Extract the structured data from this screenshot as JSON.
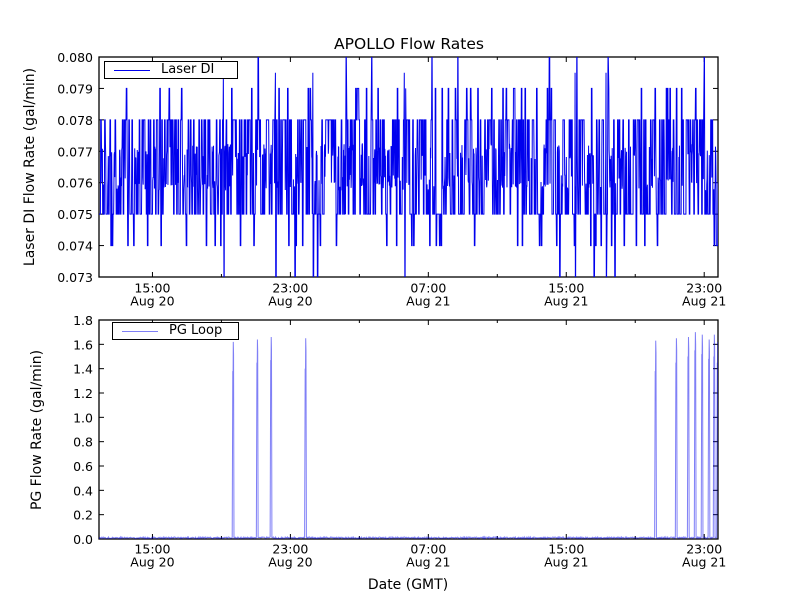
{
  "figure": {
    "title": "APOLLO Flow Rates",
    "background_color": "#ffffff",
    "axes_color": "#000000",
    "line_color": "#0000ee",
    "pg_line_opacity": 0.5
  },
  "chart_data": [
    {
      "type": "line",
      "title": "APOLLO Flow Rates",
      "ylabel": "Laser DI Flow Rate (gal/min)",
      "legend": [
        "Laser DI"
      ],
      "legend_position": "upper left",
      "line_color": "#0000ee",
      "ylim": [
        0.073,
        0.08
      ],
      "ytick_labels": [
        "0.073",
        "0.074",
        "0.075",
        "0.076",
        "0.077",
        "0.078",
        "0.079",
        "0.080"
      ],
      "ytick_values": [
        0.073,
        0.074,
        0.075,
        0.076,
        0.077,
        0.078,
        0.079,
        0.08
      ],
      "xlim_hours_since_aug20_0000": [
        11.9,
        47.8
      ],
      "xticks": [
        {
          "hour": 15,
          "time": "15:00",
          "date": "Aug 20"
        },
        {
          "hour": 23,
          "time": "23:00",
          "date": "Aug 20"
        },
        {
          "hour": 31,
          "time": "07:00",
          "date": "Aug 21"
        },
        {
          "hour": 39,
          "time": "15:00",
          "date": "Aug 21"
        },
        {
          "hour": 47,
          "time": "23:00",
          "date": "Aug 21"
        }
      ],
      "x_minor_tick_hours": [
        19,
        27,
        35,
        43
      ],
      "signal": {
        "kind": "quantized-noise",
        "description": "Flow meter reading oscillating rapidly between discrete 0.001 gal/min levels; solid band 0.076-0.077, frequent excursions to 0.075/0.078, occasional 0.074/0.079, rare clipped extremes 0.073/0.080",
        "sample_count": 2200,
        "levels": [
          0.073,
          0.074,
          0.075,
          0.076,
          0.077,
          0.078,
          0.079,
          0.08
        ],
        "weights": [
          0.003,
          0.034,
          0.185,
          0.278,
          0.278,
          0.185,
          0.034,
          0.003
        ],
        "clip_high_hours": [
          26.2,
          27.7,
          31.2,
          32.7,
          38.0,
          39.6,
          41.4,
          47.0
        ],
        "clip_low_hours": [
          19.1,
          22.1,
          24.3,
          29.6,
          39.5,
          41.3
        ],
        "seed": 1337
      }
    },
    {
      "type": "line",
      "ylabel": "PG Flow Rate (gal/min)",
      "xlabel": "Date (GMT)",
      "legend": [
        "PG Loop"
      ],
      "legend_position": "upper left",
      "line_color": "#0000ee",
      "line_opacity": 0.5,
      "ylim": [
        0.0,
        1.8
      ],
      "ytick_labels": [
        "0.0",
        "0.2",
        "0.4",
        "0.6",
        "0.8",
        "1.0",
        "1.2",
        "1.4",
        "1.6",
        "1.8"
      ],
      "ytick_values": [
        0.0,
        0.2,
        0.4,
        0.6,
        0.8,
        1.0,
        1.2,
        1.4,
        1.6,
        1.8
      ],
      "xlim_hours_since_aug20_0000": [
        11.9,
        47.8
      ],
      "xticks": [
        {
          "hour": 15,
          "time": "15:00",
          "date": "Aug 20"
        },
        {
          "hour": 23,
          "time": "23:00",
          "date": "Aug 20"
        },
        {
          "hour": 31,
          "time": "07:00",
          "date": "Aug 21"
        },
        {
          "hour": 39,
          "time": "15:00",
          "date": "Aug 21"
        },
        {
          "hour": 47,
          "time": "23:00",
          "date": "Aug 21"
        }
      ],
      "x_minor_tick_hours": [
        19,
        27,
        35,
        43
      ],
      "baseline": {
        "mean": 0.01,
        "noise_amplitude": 0.013,
        "sample_count": 1300,
        "seed": 77
      },
      "spikes": [
        {
          "hour": 19.7,
          "peak": 1.62,
          "shoulder": 1.38
        },
        {
          "hour": 21.1,
          "peak": 1.64,
          "shoulder": 1.45
        },
        {
          "hour": 21.9,
          "peak": 1.66,
          "shoulder": 1.47
        },
        {
          "hour": 23.9,
          "peak": 1.65,
          "shoulder": 1.4
        },
        {
          "hour": 44.2,
          "peak": 1.63,
          "shoulder": 1.38
        },
        {
          "hour": 45.4,
          "peak": 1.65,
          "shoulder": 1.45
        },
        {
          "hour": 46.1,
          "peak": 1.66,
          "shoulder": 1.5
        },
        {
          "hour": 46.5,
          "peak": 1.7,
          "shoulder": 1.55
        },
        {
          "hour": 46.9,
          "peak": 1.68,
          "shoulder": 1.52
        },
        {
          "hour": 47.3,
          "peak": 1.64,
          "shoulder": 1.48
        },
        {
          "hour": 47.6,
          "peak": 1.68,
          "shoulder": 1.5
        },
        {
          "hour": 47.8,
          "peak": 1.62,
          "shoulder": 1.45
        }
      ]
    }
  ]
}
